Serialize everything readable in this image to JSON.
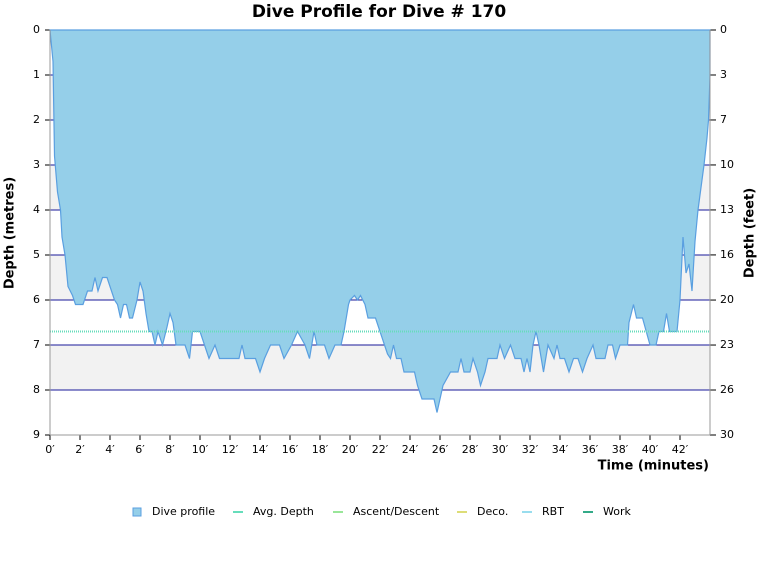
{
  "chart_data": {
    "type": "area",
    "title": "Dive Profile for Dive # 170",
    "x_label": "Time (minutes)",
    "y_label": "Depth (metres)",
    "y2_label": "Depth (feet)",
    "xlim": [
      0,
      44
    ],
    "xticks": [
      {
        "value": 0,
        "label": "0′"
      },
      {
        "value": 2,
        "label": "2′"
      },
      {
        "value": 4,
        "label": "4′"
      },
      {
        "value": 6,
        "label": "6′"
      },
      {
        "value": 8,
        "label": "8′"
      },
      {
        "value": 10,
        "label": "10′"
      },
      {
        "value": 12,
        "label": "12′"
      },
      {
        "value": 14,
        "label": "14′"
      },
      {
        "value": 16,
        "label": "16′"
      },
      {
        "value": 18,
        "label": "18′"
      },
      {
        "value": 20,
        "label": "20′"
      },
      {
        "value": 22,
        "label": "22′"
      },
      {
        "value": 24,
        "label": "24′"
      },
      {
        "value": 26,
        "label": "26′"
      },
      {
        "value": 28,
        "label": "28′"
      },
      {
        "value": 30,
        "label": "30′"
      },
      {
        "value": 32,
        "label": "32′"
      },
      {
        "value": 34,
        "label": "34′"
      },
      {
        "value": 36,
        "label": "36′"
      },
      {
        "value": 38,
        "label": "38′"
      },
      {
        "value": 40,
        "label": "40′"
      },
      {
        "value": 42,
        "label": "42′"
      }
    ],
    "ylim": [
      0,
      9
    ],
    "yticks": [
      0,
      1,
      2,
      3,
      4,
      5,
      6,
      7,
      8,
      9
    ],
    "y_inverted": true,
    "y2lim": [
      0,
      29.53
    ],
    "y2ticks": [
      0,
      {
        "value": 3.28,
        "label": "3"
      },
      {
        "value": 6.56,
        "label": "7"
      },
      {
        "value": 9.84,
        "label": "10"
      },
      {
        "value": 13.12,
        "label": "13"
      },
      {
        "value": 16.4,
        "label": "16"
      },
      {
        "value": 19.69,
        "label": "20"
      },
      {
        "value": 22.97,
        "label": "23"
      },
      {
        "value": 26.25,
        "label": "26"
      },
      {
        "value": 29.53,
        "label": "30"
      }
    ],
    "grid": true,
    "x": [
      0,
      0.2,
      0.3,
      0.5,
      0.7,
      0.8,
      1.0,
      1.2,
      1.5,
      1.7,
      2.2,
      2.5,
      2.8,
      3.0,
      3.2,
      3.5,
      3.8,
      4.0,
      4.3,
      4.5,
      4.7,
      4.9,
      5.1,
      5.3,
      5.5,
      5.8,
      6.0,
      6.2,
      6.4,
      6.6,
      6.8,
      7.0,
      7.2,
      7.5,
      7.8,
      8.0,
      8.2,
      8.4,
      9.0,
      9.3,
      9.5,
      10.0,
      10.3,
      10.6,
      11.0,
      11.3,
      12.0,
      12.6,
      12.8,
      13.0,
      13.7,
      14.0,
      14.3,
      14.7,
      15.3,
      15.6,
      16.1,
      16.5,
      17.0,
      17.3,
      17.6,
      17.8,
      18.3,
      18.6,
      19.0,
      19.4,
      19.6,
      19.9,
      20.0,
      20.3,
      20.5,
      20.7,
      21.0,
      21.2,
      21.7,
      22.0,
      22.3,
      22.5,
      22.7,
      22.9,
      23.1,
      23.4,
      23.6,
      24.3,
      24.5,
      24.8,
      25.6,
      25.8,
      26.0,
      26.2,
      26.7,
      27.2,
      27.4,
      27.6,
      28.0,
      28.2,
      28.5,
      28.7,
      29.0,
      29.2,
      29.8,
      30.0,
      30.3,
      30.7,
      31.0,
      31.4,
      31.6,
      31.8,
      32.0,
      32.2,
      32.4,
      32.6,
      32.9,
      33.2,
      33.6,
      33.8,
      34.0,
      34.3,
      34.6,
      34.9,
      35.2,
      35.5,
      35.8,
      36.2,
      36.4,
      37.0,
      37.2,
      37.5,
      37.7,
      38.0,
      38.5,
      38.6,
      38.9,
      39.1,
      39.5,
      40.0,
      40.4,
      40.6,
      40.9,
      41.1,
      41.3,
      41.8,
      42.0,
      42.2,
      42.4,
      42.6,
      42.8,
      43.0,
      43.2,
      43.4,
      43.6,
      43.8,
      43.9,
      44.0,
      44.0
    ],
    "series": [
      {
        "name": "Dive profile",
        "color": "#95cfe9",
        "values": [
          0,
          0.7,
          2.8,
          3.6,
          4.0,
          4.6,
          5.0,
          5.7,
          5.9,
          6.1,
          6.1,
          5.8,
          5.8,
          5.5,
          5.8,
          5.5,
          5.5,
          5.7,
          6.0,
          6.1,
          6.4,
          6.1,
          6.1,
          6.4,
          6.4,
          6.0,
          5.6,
          5.8,
          6.3,
          6.7,
          6.7,
          7.0,
          6.7,
          7.0,
          6.6,
          6.3,
          6.5,
          7.0,
          7.0,
          7.3,
          6.7,
          6.7,
          7.0,
          7.3,
          7.0,
          7.3,
          7.3,
          7.3,
          7.0,
          7.3,
          7.3,
          7.6,
          7.3,
          7.0,
          7.0,
          7.3,
          7.0,
          6.7,
          7.0,
          7.3,
          6.7,
          7.0,
          7.0,
          7.3,
          7.0,
          7.0,
          6.7,
          6.1,
          6.0,
          5.9,
          6.0,
          5.9,
          6.1,
          6.4,
          6.4,
          6.7,
          7.0,
          7.2,
          7.3,
          7.0,
          7.3,
          7.3,
          7.6,
          7.6,
          7.9,
          8.2,
          8.2,
          8.5,
          8.2,
          7.9,
          7.6,
          7.6,
          7.3,
          7.6,
          7.6,
          7.3,
          7.6,
          7.9,
          7.6,
          7.3,
          7.3,
          7.0,
          7.3,
          7.0,
          7.3,
          7.3,
          7.6,
          7.3,
          7.6,
          7.0,
          6.7,
          7.0,
          7.6,
          7.0,
          7.3,
          7.0,
          7.3,
          7.3,
          7.6,
          7.3,
          7.3,
          7.6,
          7.3,
          7.0,
          7.3,
          7.3,
          7.0,
          7.0,
          7.3,
          7.0,
          7.0,
          6.5,
          6.1,
          6.4,
          6.4,
          7.0,
          7.0,
          6.7,
          6.7,
          6.3,
          6.7,
          6.7,
          6.0,
          4.6,
          5.4,
          5.2,
          5.8,
          4.7,
          4.0,
          3.5,
          3.0,
          2.4,
          2.0,
          1.0,
          0
        ]
      },
      {
        "name": "Avg. Depth",
        "color": "#66ddbb",
        "value": 6.7
      },
      {
        "name": "Ascent/Descent",
        "color": "#99e699"
      },
      {
        "name": "Deco.",
        "color": "#dddd77"
      },
      {
        "name": "RBT",
        "color": "#99ddee"
      },
      {
        "name": "Work",
        "color": "#33aa88"
      }
    ]
  }
}
